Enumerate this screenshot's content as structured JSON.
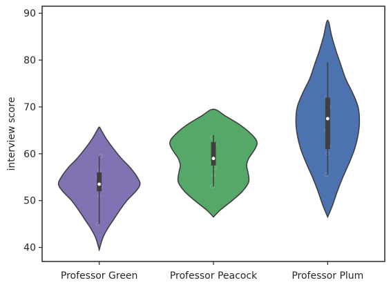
{
  "chart_data": {
    "type": "violin",
    "categories": [
      "Professor Green",
      "Professor Peacock",
      "Professor Plum"
    ],
    "ylabel": "interview score",
    "xlabel": "",
    "ylim": [
      37,
      91.5
    ],
    "yticks": [
      40,
      50,
      60,
      70,
      80,
      90
    ],
    "grid": false,
    "colors": [
      "#8172B3",
      "#55A868",
      "#4C72B0"
    ],
    "violins": [
      {
        "category": "Professor Green",
        "color": "#8172B3",
        "profile": [
          [
            39.5,
            0
          ],
          [
            42,
            5
          ],
          [
            44,
            12
          ],
          [
            46,
            21
          ],
          [
            48,
            30
          ],
          [
            50,
            40
          ],
          [
            52,
            53
          ],
          [
            53.5,
            59
          ],
          [
            55,
            55
          ],
          [
            57,
            45
          ],
          [
            59,
            32
          ],
          [
            61,
            21
          ],
          [
            63,
            11
          ],
          [
            65,
            3
          ],
          [
            65.7,
            0
          ]
        ],
        "median": 53.5,
        "q1": 52,
        "q3": 56,
        "whisker_low": 45,
        "whisker_high": 59.5,
        "points": [
          45,
          51,
          53,
          55,
          56.5,
          59.5
        ]
      },
      {
        "category": "Professor Peacock",
        "color": "#55A868",
        "profile": [
          [
            46.5,
            0
          ],
          [
            48,
            10
          ],
          [
            50,
            27
          ],
          [
            52,
            42
          ],
          [
            54,
            51
          ],
          [
            56,
            50
          ],
          [
            57.5,
            48
          ],
          [
            59,
            51
          ],
          [
            61,
            60
          ],
          [
            62.5,
            63
          ],
          [
            64,
            56
          ],
          [
            66,
            40
          ],
          [
            68,
            18
          ],
          [
            69.5,
            0
          ]
        ],
        "median": 59,
        "q1": 57.5,
        "q3": 62.5,
        "whisker_low": 53,
        "whisker_high": 64,
        "points": [
          53,
          55.5,
          57,
          58,
          60,
          62,
          63.5
        ]
      },
      {
        "category": "Professor Plum",
        "color": "#4C72B0",
        "profile": [
          [
            46.5,
            0
          ],
          [
            49,
            7
          ],
          [
            52,
            14
          ],
          [
            55,
            22
          ],
          [
            58,
            31
          ],
          [
            61,
            39
          ],
          [
            64,
            44
          ],
          [
            67,
            46
          ],
          [
            70,
            44
          ],
          [
            73,
            36
          ],
          [
            76,
            26
          ],
          [
            79,
            19
          ],
          [
            82,
            12
          ],
          [
            85,
            6
          ],
          [
            88.5,
            0
          ]
        ],
        "median": 67.5,
        "q1": 61,
        "q3": 72,
        "whisker_low": 55.5,
        "whisker_high": 79.5,
        "points": [
          55.5,
          60,
          61.5,
          65,
          68,
          70,
          72
        ]
      }
    ]
  }
}
